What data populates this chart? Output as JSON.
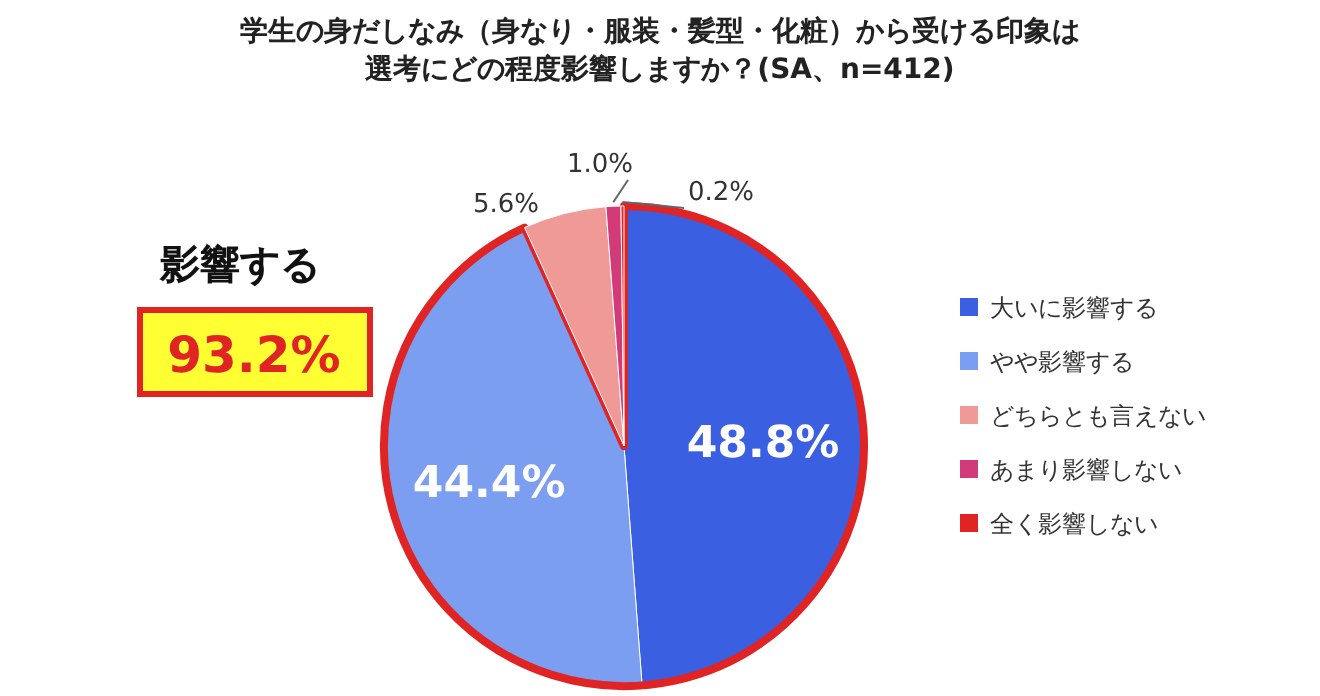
{
  "chart_data": {
    "type": "pie",
    "title": "学生の身だしなみ（身なり・服装・髪型・化粧）から受ける印象は",
    "subtitle": "選考にどの程度影響しますか？(SA、n=412)",
    "categories": [
      "大いに影響する",
      "やや影響する",
      "どちらとも言えない",
      "あまり影響しない",
      "全く影響しない"
    ],
    "values": [
      48.8,
      44.4,
      5.6,
      1.0,
      0.2
    ],
    "colors": [
      "#3a5fe0",
      "#7c9ef0",
      "#f09a98",
      "#d23a78",
      "#e02424"
    ],
    "value_labels": [
      "48.8%",
      "44.4%",
      "5.6%",
      "1.0%",
      "0.2%"
    ],
    "legend": "right",
    "annotations": [
      "影響する",
      "93.2%"
    ]
  }
}
